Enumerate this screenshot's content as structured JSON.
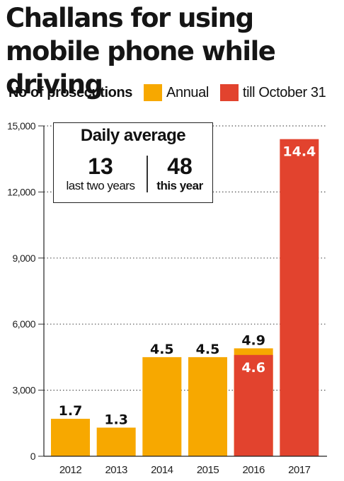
{
  "title": "Challans for using  mobile phone while driving",
  "legend": {
    "metric": "No of prosecutions",
    "items": [
      {
        "label": "Annual",
        "color": "#f7a800"
      },
      {
        "label": "till October 31",
        "color": "#e2432e"
      }
    ]
  },
  "inset": {
    "title": "Daily average",
    "left_value": "13",
    "left_caption": "last two years",
    "right_value": "48",
    "right_caption": "this year"
  },
  "chart_data": {
    "type": "bar",
    "categories": [
      "2012",
      "2013",
      "2014",
      "2015",
      "2016",
      "2017"
    ],
    "unit_note": "bar labels in thousands",
    "series": [
      {
        "name": "Annual",
        "color": "#f7a800",
        "values": [
          1700,
          1300,
          4500,
          4500,
          4900,
          null
        ],
        "labels": [
          "1.7",
          "1.3",
          "4.5",
          "4.5",
          "4.9",
          null
        ]
      },
      {
        "name": "till October 31",
        "color": "#e2432e",
        "values": [
          null,
          null,
          null,
          null,
          4600,
          14400
        ],
        "labels": [
          null,
          null,
          null,
          null,
          "4.6",
          "14.4"
        ]
      }
    ],
    "ylim": [
      0,
      15000
    ],
    "yticks": [
      0,
      3000,
      6000,
      9000,
      12000,
      15000
    ],
    "ytick_labels": [
      "0",
      "3,000",
      "6,000",
      "9,000",
      "12,000",
      "15,000"
    ],
    "grid": "horizontal dotted",
    "legend_position": "top"
  }
}
